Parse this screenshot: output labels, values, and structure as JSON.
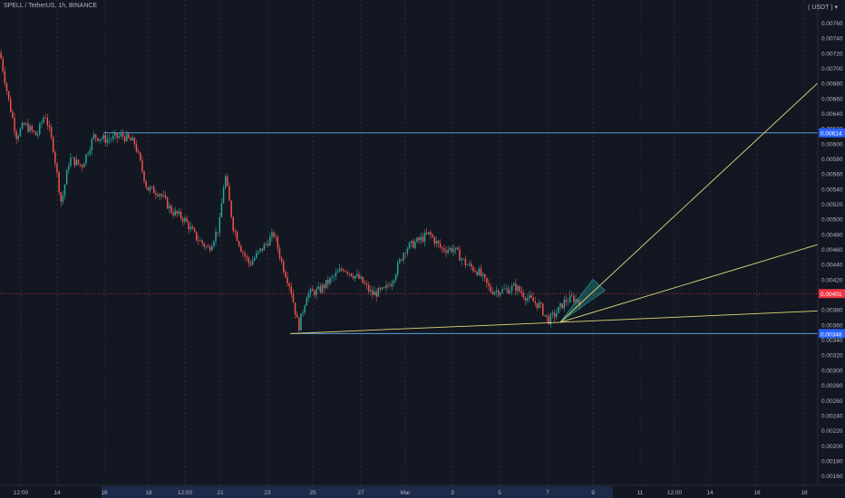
{
  "header": {
    "symbol": "SPELL / TetherUS, 1h, BINANCE",
    "currency": "( USDT ) ▾"
  },
  "colors": {
    "background": "#131722",
    "grid": "#2a2e39",
    "up": "#26a69a",
    "down": "#ef5350",
    "trendline": "#e2d97a",
    "level": "#2962ff",
    "price_line": "#f23645",
    "fill": "#26a69a"
  },
  "chart_data": {
    "type": "candlestick",
    "title": "SPELL / TetherUS, 1h, BINANCE",
    "y_unit": "USDT",
    "ylim": [
      0.0015,
      0.0078
    ],
    "y_ticks": [
      "0.00760",
      "0.00740",
      "0.00720",
      "0.00700",
      "0.00680",
      "0.00660",
      "0.00640",
      "0.00620",
      "0.00600",
      "0.00580",
      "0.00560",
      "0.00540",
      "0.00520",
      "0.00500",
      "0.00480",
      "0.00460",
      "0.00440",
      "0.00420",
      "0.00400",
      "0.00380",
      "0.00360",
      "0.00340",
      "0.00320",
      "0.00300",
      "0.00280",
      "0.00260",
      "0.00240",
      "0.00220",
      "0.00200",
      "0.00180",
      "0.00160"
    ],
    "x_ticks": [
      "12:00",
      "14",
      "16",
      "18",
      "12:00",
      "21",
      "23",
      "25",
      "27",
      "Mar",
      "3",
      "5",
      "7",
      "9",
      "11",
      "12:00",
      "14",
      "16",
      "18"
    ],
    "highlighted_x_range": [
      "16",
      "9"
    ],
    "price_path": [
      [
        0.0,
        0.0072
      ],
      [
        0.01,
        0.0066
      ],
      [
        0.02,
        0.0061
      ],
      [
        0.03,
        0.00625
      ],
      [
        0.045,
        0.0061
      ],
      [
        0.055,
        0.0064
      ],
      [
        0.065,
        0.00595
      ],
      [
        0.075,
        0.0052
      ],
      [
        0.085,
        0.0058
      ],
      [
        0.1,
        0.0057
      ],
      [
        0.115,
        0.0061
      ],
      [
        0.13,
        0.00605
      ],
      [
        0.15,
        0.0061
      ],
      [
        0.165,
        0.006
      ],
      [
        0.18,
        0.0054
      ],
      [
        0.195,
        0.00535
      ],
      [
        0.21,
        0.0051
      ],
      [
        0.225,
        0.005
      ],
      [
        0.24,
        0.00475
      ],
      [
        0.255,
        0.0046
      ],
      [
        0.268,
        0.0049
      ],
      [
        0.275,
        0.0056
      ],
      [
        0.285,
        0.0049
      ],
      [
        0.295,
        0.0046
      ],
      [
        0.305,
        0.0044
      ],
      [
        0.32,
        0.0046
      ],
      [
        0.335,
        0.0048
      ],
      [
        0.345,
        0.0044
      ],
      [
        0.355,
        0.0041
      ],
      [
        0.365,
        0.00355
      ],
      [
        0.375,
        0.004
      ],
      [
        0.39,
        0.00405
      ],
      [
        0.405,
        0.0042
      ],
      [
        0.42,
        0.00435
      ],
      [
        0.44,
        0.0042
      ],
      [
        0.455,
        0.004
      ],
      [
        0.47,
        0.00405
      ],
      [
        0.48,
        0.0042
      ],
      [
        0.495,
        0.0046
      ],
      [
        0.51,
        0.0047
      ],
      [
        0.525,
        0.0048
      ],
      [
        0.54,
        0.0046
      ],
      [
        0.555,
        0.0046
      ],
      [
        0.57,
        0.0044
      ],
      [
        0.585,
        0.0043
      ],
      [
        0.6,
        0.00405
      ],
      [
        0.615,
        0.00405
      ],
      [
        0.63,
        0.0041
      ],
      [
        0.645,
        0.00395
      ],
      [
        0.66,
        0.00385
      ],
      [
        0.67,
        0.00365
      ],
      [
        0.68,
        0.00375
      ],
      [
        0.69,
        0.0039
      ],
      [
        0.7,
        0.00395
      ],
      [
        0.71,
        0.0039
      ]
    ],
    "price_range": [
      0.00355,
      0.00725
    ],
    "levels": [
      {
        "label": "0.00614",
        "value": 0.00614
      },
      {
        "label": "0.00348",
        "value": 0.00348
      }
    ],
    "last_price": {
      "label": "0.00401",
      "value": 0.00401
    },
    "trendlines": [
      {
        "from": [
          0.355,
          0.00348
        ],
        "to": [
          0.685,
          0.00363
        ]
      },
      {
        "from": [
          0.685,
          0.00363
        ],
        "to": [
          1.0,
          0.00378
        ]
      },
      {
        "from": [
          0.685,
          0.00363
        ],
        "to": [
          1.0,
          0.00466
        ]
      },
      {
        "from": [
          0.685,
          0.00363
        ],
        "to": [
          1.0,
          0.0068
        ]
      }
    ]
  }
}
